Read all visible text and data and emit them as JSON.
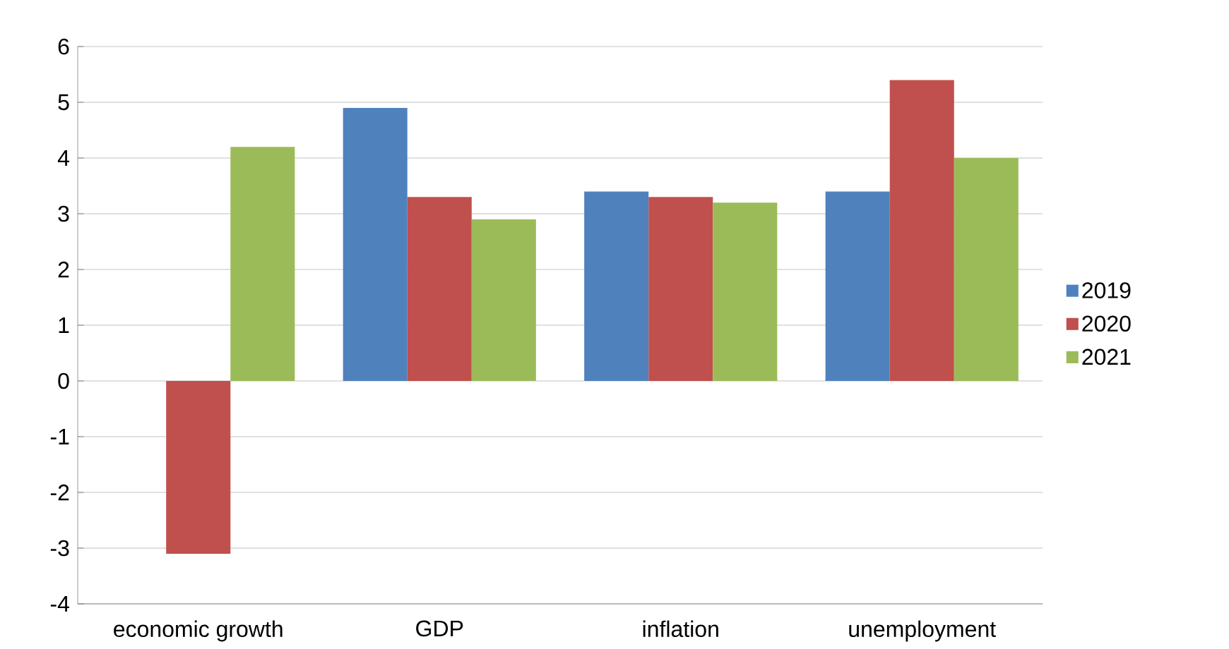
{
  "chart_data": {
    "type": "bar",
    "categories": [
      "economic growth",
      "GDP",
      "inflation",
      "unemployment"
    ],
    "series": [
      {
        "name": "2019",
        "color": "#4f81bd",
        "values": [
          null,
          4.9,
          3.4,
          3.4
        ]
      },
      {
        "name": "2020",
        "color": "#c0504d",
        "values": [
          -3.1,
          3.3,
          3.3,
          5.4
        ]
      },
      {
        "name": "2021",
        "color": "#9bbb59",
        "values": [
          4.2,
          2.9,
          3.2,
          4.0
        ]
      }
    ],
    "ylim": [
      -4,
      6
    ],
    "yticks": [
      -4,
      -3,
      -2,
      -1,
      0,
      1,
      2,
      3,
      4,
      5,
      6
    ],
    "grid": "y",
    "legend": "right"
  }
}
